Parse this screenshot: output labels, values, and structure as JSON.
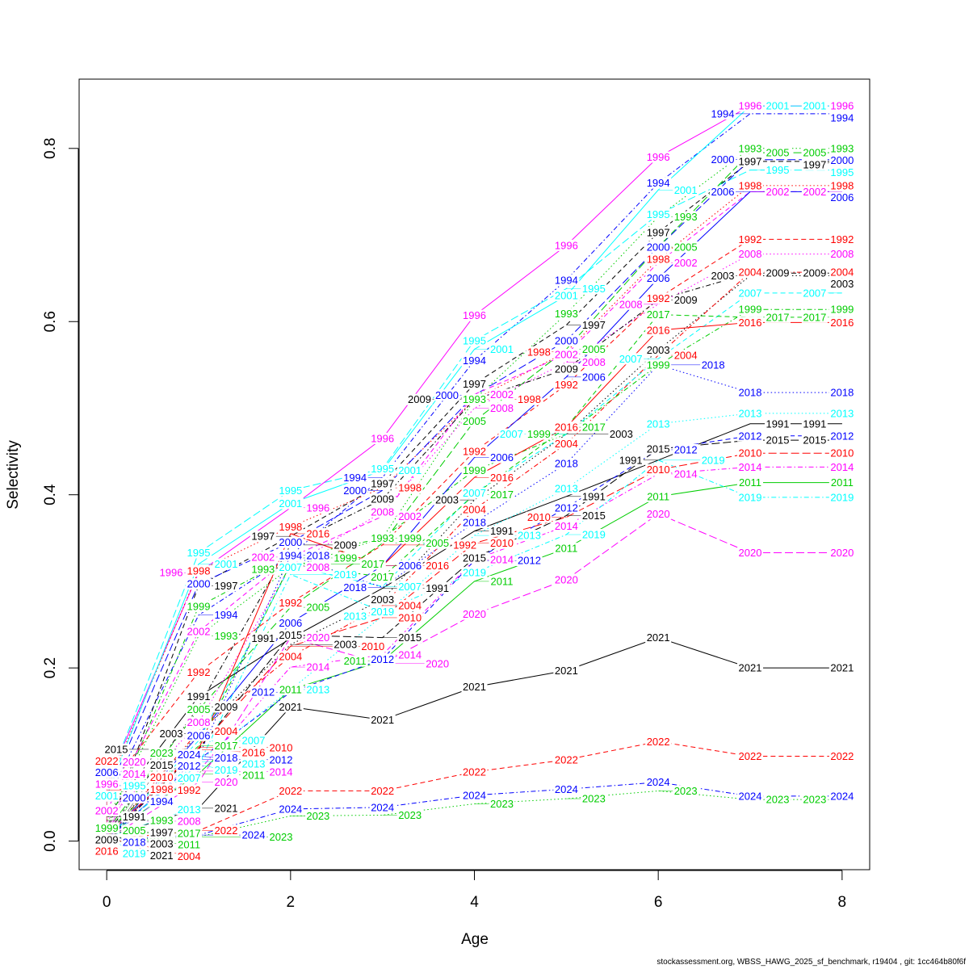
{
  "chart_data": {
    "type": "line",
    "title": "",
    "xlabel": "Age",
    "ylabel": "Selectivity",
    "xlim": [
      -0.3,
      8.3
    ],
    "ylim": [
      -0.033,
      0.88
    ],
    "x_ticks": [
      "0",
      "2",
      "4",
      "6",
      "8"
    ],
    "y_ticks": [
      "0.0",
      "0.2",
      "0.4",
      "0.6",
      "0.8"
    ],
    "grid": false,
    "legend": "none (series labelled inline by year)",
    "x": [
      0,
      1,
      2,
      3,
      4,
      5,
      6,
      7,
      8
    ],
    "series": [
      {
        "name": "1991",
        "color": "#000000",
        "lty": "solid",
        "values": [
          0.028,
          0.167,
          0.234,
          0.292,
          0.358,
          0.398,
          0.44,
          0.482,
          0.482
        ]
      },
      {
        "name": "1992",
        "color": "#FF0000",
        "lty": "dashed",
        "values": [
          0.059,
          0.195,
          0.275,
          0.342,
          0.45,
          0.527,
          0.627,
          0.695,
          0.695
        ]
      },
      {
        "name": "1993",
        "color": "#00CD00",
        "lty": "dotted",
        "values": [
          0.024,
          0.237,
          0.316,
          0.35,
          0.51,
          0.609,
          0.721,
          0.8,
          0.8
        ]
      },
      {
        "name": "1994",
        "color": "#0000FF",
        "lty": "dotdash",
        "values": [
          0.046,
          0.261,
          0.33,
          0.42,
          0.555,
          0.648,
          0.76,
          0.84,
          0.84
        ]
      },
      {
        "name": "1995",
        "color": "#00FFFF",
        "lty": "longdash",
        "values": [
          0.064,
          0.333,
          0.405,
          0.43,
          0.578,
          0.638,
          0.724,
          0.775,
          0.775
        ]
      },
      {
        "name": "1996",
        "color": "#FF00FF",
        "lty": "solid",
        "values": [
          0.066,
          0.31,
          0.385,
          0.465,
          0.607,
          0.688,
          0.79,
          0.849,
          0.849
        ]
      },
      {
        "name": "1997",
        "color": "#000000",
        "lty": "dashed",
        "values": [
          0.01,
          0.295,
          0.352,
          0.413,
          0.528,
          0.596,
          0.703,
          0.785,
          0.785
        ]
      },
      {
        "name": "1998",
        "color": "#FF0000",
        "lty": "dotted",
        "values": [
          0.06,
          0.312,
          0.363,
          0.408,
          0.51,
          0.565,
          0.672,
          0.757,
          0.757
        ]
      },
      {
        "name": "1999",
        "color": "#00CD00",
        "lty": "dotdash",
        "values": [
          0.015,
          0.271,
          0.327,
          0.35,
          0.428,
          0.47,
          0.55,
          0.614,
          0.614
        ]
      },
      {
        "name": "2000",
        "color": "#0000FF",
        "lty": "longdash",
        "values": [
          0.052,
          0.297,
          0.345,
          0.405,
          0.515,
          0.578,
          0.686,
          0.787,
          0.787
        ]
      },
      {
        "name": "2001",
        "color": "#00FFFF",
        "lty": "solid",
        "values": [
          0.054,
          0.32,
          0.39,
          0.428,
          0.568,
          0.63,
          0.752,
          0.849,
          0.849
        ]
      },
      {
        "name": "2002",
        "color": "#FF00FF",
        "lty": "dashed",
        "values": [
          0.035,
          0.242,
          0.328,
          0.375,
          0.516,
          0.562,
          0.668,
          0.75,
          0.75
        ]
      },
      {
        "name": "2003",
        "color": "#000000",
        "lty": "dotted",
        "values": [
          0.006,
          0.124,
          0.227,
          0.279,
          0.394,
          0.47,
          0.567,
          0.653,
          0.653
        ]
      },
      {
        "name": "2004",
        "color": "#FF0000",
        "lty": "dotdash",
        "values": [
          0.004,
          0.127,
          0.213,
          0.272,
          0.383,
          0.459,
          0.561,
          0.657,
          0.657
        ]
      },
      {
        "name": "2005",
        "color": "#00CD00",
        "lty": "longdash",
        "values": [
          0.012,
          0.152,
          0.27,
          0.344,
          0.485,
          0.568,
          0.686,
          0.795,
          0.795
        ]
      },
      {
        "name": "2006",
        "color": "#0000FF",
        "lty": "solid",
        "values": [
          0.002,
          0.122,
          0.252,
          0.318,
          0.443,
          0.536,
          0.65,
          0.75,
          0.75
        ]
      },
      {
        "name": "2007",
        "color": "#00FFFF",
        "lty": "dashed",
        "values": [
          0.003,
          0.116,
          0.318,
          0.294,
          0.402,
          0.47,
          0.557,
          0.633,
          0.633
        ]
      },
      {
        "name": "2008",
        "color": "#FF00FF",
        "lty": "dotted",
        "values": [
          0.023,
          0.137,
          0.318,
          0.38,
          0.5,
          0.553,
          0.62,
          0.678,
          0.678
        ]
      },
      {
        "name": "2009",
        "color": "#000000",
        "lty": "dotdash",
        "values": [
          0.008,
          0.155,
          0.342,
          0.395,
          0.51,
          0.545,
          0.625,
          0.656,
          0.656
        ]
      },
      {
        "name": "2010",
        "color": "#FF0000",
        "lty": "longdash",
        "values": [
          0.003,
          0.108,
          0.225,
          0.258,
          0.344,
          0.374,
          0.429,
          0.448,
          0.448
        ]
      },
      {
        "name": "2011",
        "color": "#00CD00",
        "lty": "solid",
        "values": [
          0.006,
          0.078,
          0.175,
          0.208,
          0.3,
          0.338,
          0.398,
          0.414,
          0.414
        ]
      },
      {
        "name": "2012",
        "color": "#0000FF",
        "lty": "dashed",
        "values": [
          0.002,
          0.094,
          0.172,
          0.21,
          0.324,
          0.385,
          0.452,
          0.468,
          0.468
        ]
      },
      {
        "name": "2013",
        "color": "#00FFFF",
        "lty": "dotted",
        "values": [
          0.004,
          0.092,
          0.175,
          0.26,
          0.353,
          0.407,
          0.482,
          0.494,
          0.494
        ]
      },
      {
        "name": "2014",
        "color": "#FF00FF",
        "lty": "dotdash",
        "values": [
          0.003,
          0.081,
          0.201,
          0.215,
          0.325,
          0.364,
          0.424,
          0.432,
          0.432
        ]
      },
      {
        "name": "2015",
        "color": "#000000",
        "lty": "longdash",
        "values": [
          0.002,
          0.106,
          0.238,
          0.235,
          0.327,
          0.376,
          0.453,
          0.463,
          0.463
        ]
      },
      {
        "name": "2016",
        "color": "#FF0000",
        "lty": "solid",
        "values": [
          0.006,
          0.106,
          0.355,
          0.318,
          0.42,
          0.478,
          0.59,
          0.599,
          0.599
        ]
      },
      {
        "name": "2017",
        "color": "#00CD00",
        "lty": "dashed",
        "values": [
          0.01,
          0.11,
          0.32,
          0.305,
          0.4,
          0.478,
          0.608,
          0.605,
          0.605
        ]
      },
      {
        "name": "2018",
        "color": "#0000FF",
        "lty": "dotted",
        "values": [
          0.008,
          0.098,
          0.33,
          0.293,
          0.368,
          0.436,
          0.55,
          0.518,
          0.518
        ]
      },
      {
        "name": "2019",
        "color": "#00FFFF",
        "lty": "dotdash",
        "values": [
          0.006,
          0.088,
          0.308,
          0.265,
          0.31,
          0.354,
          0.44,
          0.397,
          0.397
        ]
      },
      {
        "name": "2020",
        "color": "#FF00FF",
        "lty": "longdash",
        "values": [
          0.002,
          0.068,
          0.235,
          0.205,
          0.262,
          0.302,
          0.378,
          0.333,
          0.333
        ]
      },
      {
        "name": "2021",
        "color": "#000000",
        "lty": "solid",
        "values": [
          0.005,
          0.038,
          0.155,
          0.14,
          0.178,
          0.197,
          0.235,
          0.2,
          0.2
        ]
      },
      {
        "name": "2022",
        "color": "#FF0000",
        "lty": "dashed",
        "values": [
          0.002,
          0.012,
          0.058,
          0.058,
          0.08,
          0.094,
          0.115,
          0.098,
          0.098
        ]
      },
      {
        "name": "2023",
        "color": "#00CD00",
        "lty": "dotted",
        "values": [
          0.001,
          0.005,
          0.029,
          0.03,
          0.043,
          0.049,
          0.058,
          0.048,
          0.048
        ]
      },
      {
        "name": "2024",
        "color": "#0000FF",
        "lty": "dotdash",
        "values": [
          0.002,
          0.007,
          0.037,
          0.039,
          0.053,
          0.06,
          0.068,
          0.052,
          0.052
        ]
      }
    ]
  },
  "footer": "stockassessment.org, WBSS_HAWG_2025_sf_benchmark, r19404 , git: 1cc464b80f6f"
}
